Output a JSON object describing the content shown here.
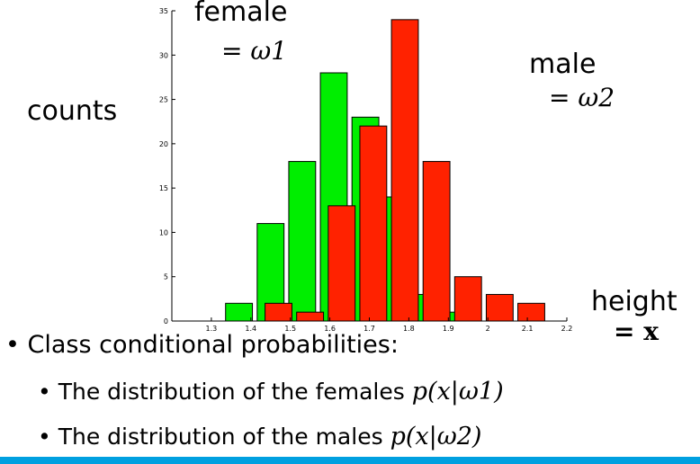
{
  "chart_data": {
    "type": "bar",
    "ylabel": "counts",
    "xlabel": "height",
    "xlabel_math": "= x",
    "xlim": [
      1.2,
      2.2
    ],
    "ylim": [
      0,
      35
    ],
    "x_ticks": [
      "1.3",
      "1.4",
      "1.5",
      "1.6",
      "1.7",
      "1.8",
      "1.9",
      "2",
      "2.1",
      "2.2"
    ],
    "y_ticks": [
      "0",
      "5",
      "10",
      "15",
      "20",
      "25",
      "30",
      "35"
    ],
    "bin_width": 0.08,
    "series": [
      {
        "name": "female",
        "math": "= ω1",
        "color": "#00ee00",
        "x": [
          1.37,
          1.45,
          1.53,
          1.61,
          1.69,
          1.77,
          1.85,
          1.93
        ],
        "values": [
          2,
          11,
          18,
          28,
          23,
          14,
          3,
          1
        ]
      },
      {
        "name": "male",
        "math": "= ω2",
        "color": "#ff2200",
        "x": [
          1.47,
          1.55,
          1.63,
          1.71,
          1.79,
          1.87,
          1.95,
          2.03,
          2.11
        ],
        "values": [
          2,
          1,
          13,
          22,
          34,
          18,
          5,
          3,
          2
        ]
      }
    ]
  },
  "bullets": {
    "main": "Class conditional probabilities:",
    "sub1_text": "The distribution of the females",
    "sub1_math": "p(x|ω1)",
    "sub2_text": "The distribution of the males",
    "sub2_math": "p(x|ω2)"
  },
  "colors": {
    "accent_bar": "#00a0e0"
  }
}
